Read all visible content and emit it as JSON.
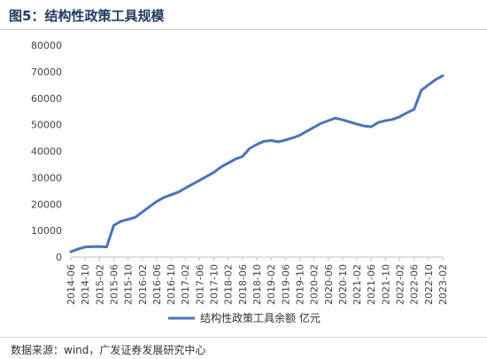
{
  "header": {
    "title": "图5：结构性政策工具规模"
  },
  "source": {
    "text": "数据来源：wind，广发证券发展研究中心"
  },
  "colors": {
    "line": "#4a74b5",
    "axis": "#bfbfbf",
    "title": "#1f3b5e"
  },
  "chart_data": {
    "type": "line",
    "title": "",
    "xlabel": "",
    "ylabel": "",
    "ylim": [
      0,
      80000
    ],
    "yticks": [
      0,
      10000,
      20000,
      30000,
      40000,
      50000,
      60000,
      70000,
      80000
    ],
    "xtick_labels": [
      "2014-06",
      "2014-10",
      "2015-02",
      "2015-06",
      "2015-10",
      "2016-02",
      "2016-06",
      "2016-10",
      "2017-02",
      "2017-06",
      "2017-10",
      "2018-02",
      "2018-06",
      "2018-10",
      "2019-02",
      "2019-06",
      "2019-10",
      "2020-02",
      "2020-06",
      "2020-10",
      "2021-02",
      "2021-06",
      "2021-10",
      "2022-02",
      "2022-06",
      "2022-10",
      "2023-02"
    ],
    "grid": false,
    "legend_position": "bottom",
    "series": [
      {
        "name": "结构性政策工具余额  亿元",
        "x": [
          "2014-06",
          "2014-08",
          "2014-10",
          "2014-12",
          "2015-02",
          "2015-04",
          "2015-06",
          "2015-08",
          "2015-10",
          "2015-12",
          "2016-02",
          "2016-04",
          "2016-06",
          "2016-08",
          "2016-10",
          "2016-12",
          "2017-02",
          "2017-04",
          "2017-06",
          "2017-08",
          "2017-10",
          "2017-12",
          "2018-02",
          "2018-04",
          "2018-06",
          "2018-08",
          "2018-10",
          "2018-12",
          "2019-02",
          "2019-04",
          "2019-06",
          "2019-08",
          "2019-10",
          "2019-12",
          "2020-02",
          "2020-04",
          "2020-06",
          "2020-08",
          "2020-10",
          "2020-12",
          "2021-02",
          "2021-04",
          "2021-06",
          "2021-08",
          "2021-10",
          "2021-12",
          "2022-02",
          "2022-04",
          "2022-06",
          "2022-08",
          "2022-10",
          "2022-12",
          "2023-02"
        ],
        "values": [
          2000,
          3000,
          3800,
          3900,
          4000,
          3800,
          12000,
          13500,
          14200,
          15000,
          17000,
          19000,
          21000,
          22500,
          23500,
          24500,
          26000,
          27500,
          29000,
          30500,
          32000,
          34000,
          35500,
          37000,
          38000,
          41000,
          42500,
          43700,
          44000,
          43500,
          44200,
          45000,
          46000,
          47500,
          49000,
          50500,
          51500,
          52500,
          51800,
          51000,
          50200,
          49500,
          49200,
          50800,
          51500,
          52000,
          53000,
          54500,
          55800,
          63000,
          65000,
          67000,
          68500
        ]
      }
    ]
  }
}
